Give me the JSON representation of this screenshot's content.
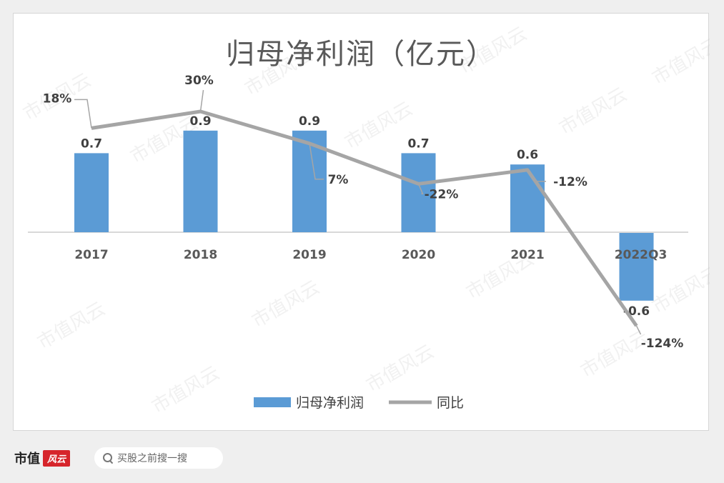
{
  "chart_data": {
    "type": "bar",
    "title": "归母净利润（亿元）",
    "categories": [
      "2017",
      "2018",
      "2019",
      "2020",
      "2021",
      "2022Q3"
    ],
    "series": [
      {
        "name": "归母净利润",
        "type": "bar",
        "values": [
          0.7,
          0.9,
          0.9,
          0.7,
          0.6,
          -0.6
        ],
        "labels": [
          "0.7",
          "0.9",
          "0.9",
          "0.7",
          "0.6",
          "-0.6"
        ],
        "color": "#5b9bd5"
      },
      {
        "name": "同比",
        "type": "line",
        "values": [
          18,
          30,
          7,
          -22,
          -12,
          -124
        ],
        "labels": [
          "18%",
          "30%",
          "7%",
          "-22%",
          "-12%",
          "-124%"
        ],
        "color": "#a5a5a5"
      }
    ],
    "bar_axis_range": [
      -1.05,
      1.05
    ],
    "line_axis_range": [
      -150,
      110
    ],
    "legend_position": "bottom",
    "grid": false
  },
  "watermark": "市值风云",
  "footer": {
    "brand_text": "市值",
    "brand_badge": "风云",
    "search_placeholder": "买股之前搜一搜"
  }
}
